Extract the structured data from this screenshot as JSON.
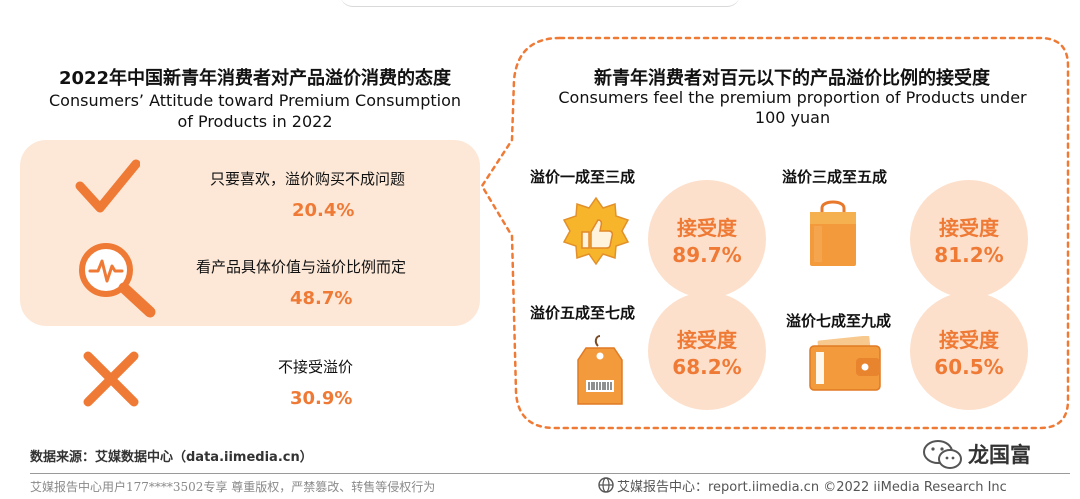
{
  "left": {
    "title_cn": "2022年中国新青年消费者对产品溢价消费的态度",
    "title_en_line1": "Consumers’   Attitude toward Premium Consumption",
    "title_en_line2": "of Products in 2022",
    "options": [
      {
        "icon": "check-icon",
        "label": "只要喜欢，溢价购买不成问题",
        "value": "20.4%"
      },
      {
        "icon": "magnifier-pulse-icon",
        "label": "看产品具体价值与溢价比例而定",
        "value": "48.7%"
      },
      {
        "icon": "cross-icon",
        "label": "不接受溢价",
        "value": "30.9%"
      }
    ]
  },
  "right": {
    "title_cn": "新青年消费者对百元以下的产品溢价比例的接受度",
    "title_en_line1": "Consumers feel the premium proportion of Products under",
    "title_en_line2": "100 yuan",
    "items": [
      {
        "category": "溢价一成至三成",
        "icon": "thumbs-up-badge-icon",
        "metric": "接受度",
        "value": "89.7%"
      },
      {
        "category": "溢价三成至五成",
        "icon": "shopping-bag-icon",
        "metric": "接受度",
        "value": "81.2%"
      },
      {
        "category": "溢价五成至七成",
        "icon": "price-tag-icon",
        "metric": "接受度",
        "value": "68.2%"
      },
      {
        "category": "溢价七成至九成",
        "icon": "wallet-icon",
        "metric": "接受度",
        "value": "60.5%"
      }
    ]
  },
  "source": "数据来源：艾媒数据中心（data.iimedia.cn）",
  "footer_left": "艾媒报告中心用户177****3502专享 尊重版权，严禁篡改、转售等侵权行为",
  "footer_right": "艾媒报告中心：report.iimedia.cn  ©2022  iiMedia Research  Inc",
  "watermark": "龙国富",
  "colors": {
    "accent": "#ef7a36",
    "peach": "#fde8d8",
    "circle": "#fde0cb"
  },
  "chart_data": [
    {
      "type": "table",
      "title": "2022年中国新青年消费者对产品溢价消费的态度",
      "categories": [
        "只要喜欢，溢价购买不成问题",
        "看产品具体价值与溢价比例而定",
        "不接受溢价"
      ],
      "values": [
        20.4,
        48.7,
        30.9
      ],
      "unit": "%"
    },
    {
      "type": "table",
      "title": "新青年消费者对百元以下的产品溢价比例的接受度",
      "categories": [
        "溢价一成至三成",
        "溢价三成至五成",
        "溢价五成至七成",
        "溢价七成至九成"
      ],
      "values": [
        89.7,
        81.2,
        68.2,
        60.5
      ],
      "unit": "%"
    }
  ]
}
